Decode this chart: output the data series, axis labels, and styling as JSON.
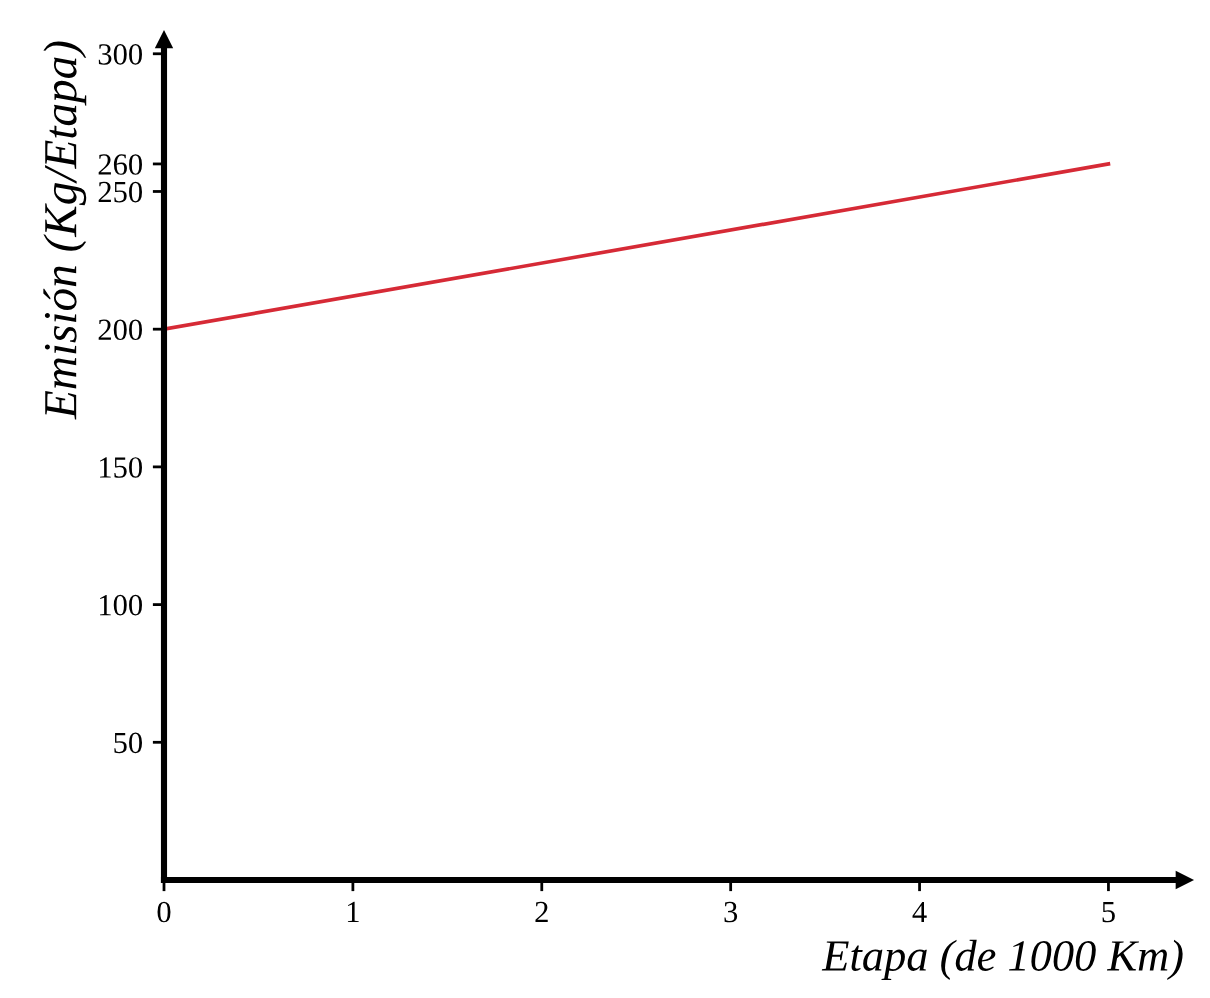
{
  "chart_data": {
    "type": "line",
    "xlabel": "Etapa (de 1000 Km)",
    "ylabel": "Emisión (Kg/Etapa)",
    "x": [
      0,
      5
    ],
    "series": [
      {
        "color": "#d62a36",
        "values": [
          200,
          260
        ]
      }
    ],
    "xlim": [
      0,
      5.4
    ],
    "ylim": [
      0,
      305
    ],
    "xticks": [
      0,
      1,
      2,
      3,
      4,
      5
    ],
    "yticks": [
      50,
      100,
      150,
      200,
      250,
      260,
      300
    ],
    "grid": false,
    "legend": false,
    "marker": "none",
    "line_style": "solid"
  }
}
